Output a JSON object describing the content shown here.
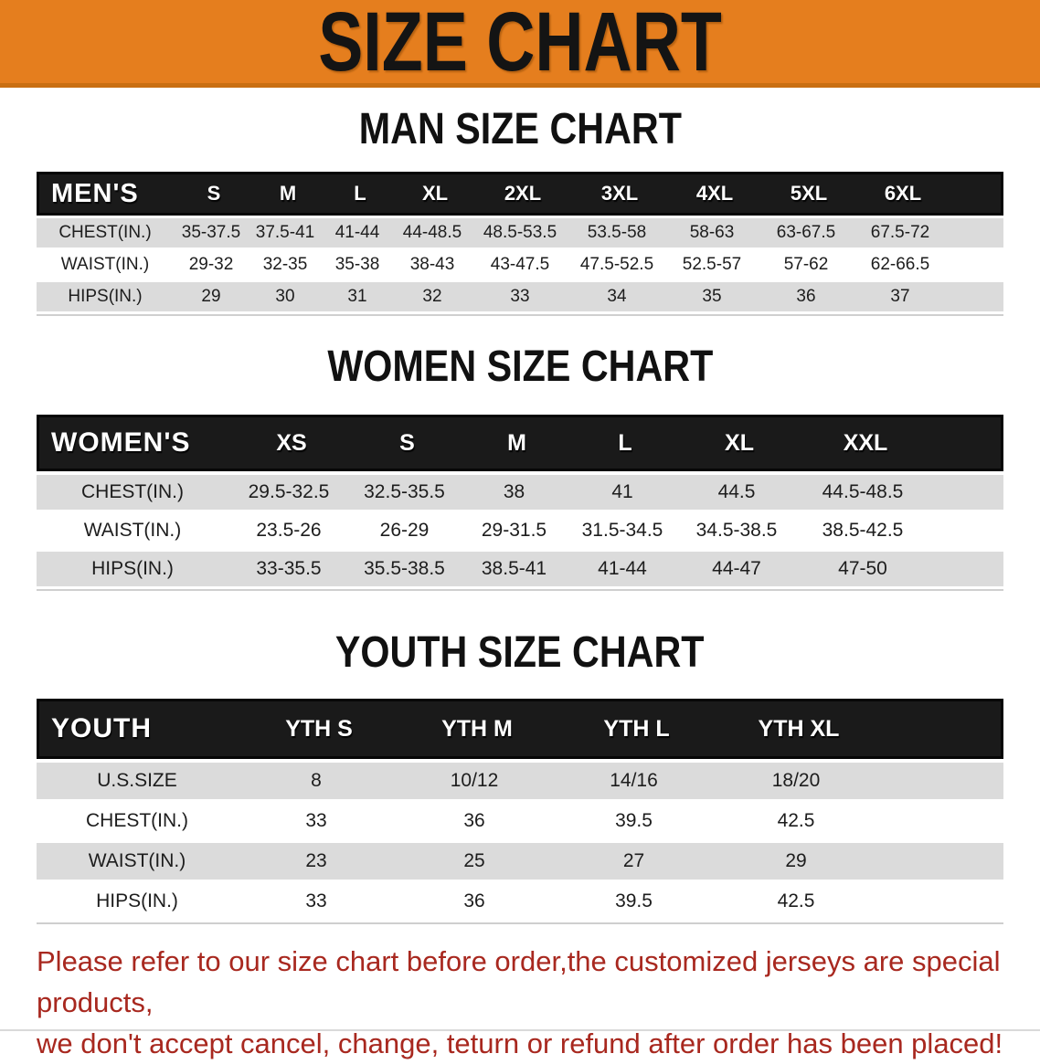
{
  "banner": {
    "title": "SIZE CHART"
  },
  "colors": {
    "banner_orange": "#E57E1E",
    "banner_border": "#C96F12",
    "header_black": "#1A1A1A",
    "row_gray": "#DBDBDB",
    "footer_red": "#A8281F"
  },
  "man": {
    "heading": "MAN SIZE CHART",
    "header": {
      "label": "MEN'S",
      "cols": [
        "S",
        "M",
        "L",
        "XL",
        "2XL",
        "3XL",
        "4XL",
        "5XL",
        "6XL"
      ]
    },
    "rows": [
      {
        "label": "CHEST(IN.)",
        "values": [
          "35-37.5",
          "37.5-41",
          "41-44",
          "44-48.5",
          "48.5-53.5",
          "53.5-58",
          "58-63",
          "63-67.5",
          "67.5-72"
        ]
      },
      {
        "label": "WAIST(IN.)",
        "values": [
          "29-32",
          "32-35",
          "35-38",
          "38-43",
          "43-47.5",
          "47.5-52.5",
          "52.5-57",
          "57-62",
          "62-66.5"
        ]
      },
      {
        "label": "HIPS(IN.)",
        "values": [
          "29",
          "30",
          "31",
          "32",
          "33",
          "34",
          "35",
          "36",
          "37"
        ]
      }
    ]
  },
  "women": {
    "heading": "WOMEN SIZE CHART",
    "header": {
      "label": "WOMEN'S",
      "cols": [
        "XS",
        "S",
        "M",
        "L",
        "XL",
        "XXL"
      ]
    },
    "rows": [
      {
        "label": "CHEST(IN.)",
        "values": [
          "29.5-32.5",
          "32.5-35.5",
          "38",
          "41",
          "44.5",
          "44.5-48.5"
        ]
      },
      {
        "label": "WAIST(IN.)",
        "values": [
          "23.5-26",
          "26-29",
          "29-31.5",
          "31.5-34.5",
          "34.5-38.5",
          "38.5-42.5"
        ]
      },
      {
        "label": "HIPS(IN.)",
        "values": [
          "33-35.5",
          "35.5-38.5",
          "38.5-41",
          "41-44",
          "44-47",
          "47-50"
        ]
      }
    ]
  },
  "youth": {
    "heading": "YOUTH SIZE CHART",
    "header": {
      "label": "YOUTH",
      "cols": [
        "YTH S",
        "YTH M",
        "YTH L",
        "YTH XL"
      ]
    },
    "rows": [
      {
        "label": "U.S.SIZE",
        "values": [
          "8",
          "10/12",
          "14/16",
          "18/20"
        ]
      },
      {
        "label": "CHEST(IN.)",
        "values": [
          "33",
          "36",
          "39.5",
          "42.5"
        ]
      },
      {
        "label": "WAIST(IN.)",
        "values": [
          "23",
          "25",
          "27",
          "29"
        ]
      },
      {
        "label": "HIPS(IN.)",
        "values": [
          "33",
          "36",
          "39.5",
          "42.5"
        ]
      }
    ]
  },
  "footer": {
    "line1": "Please refer to our size chart before order,the customized jerseys are special products,",
    "line2": "we don't accept cancel, change, teturn or refund after order has been placed!"
  }
}
